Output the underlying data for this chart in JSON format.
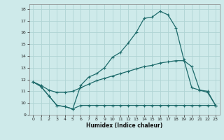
{
  "xlabel": "Humidex (Indice chaleur)",
  "xlim": [
    -0.5,
    23.5
  ],
  "ylim": [
    9,
    18.4
  ],
  "xticks": [
    0,
    1,
    2,
    3,
    4,
    5,
    6,
    7,
    8,
    9,
    10,
    11,
    12,
    13,
    14,
    15,
    16,
    17,
    18,
    19,
    20,
    21,
    22,
    23
  ],
  "yticks": [
    9,
    10,
    11,
    12,
    13,
    14,
    15,
    16,
    17,
    18
  ],
  "bg_color": "#ceeaea",
  "grid_color": "#afd4d4",
  "line_color": "#1e6b6b",
  "line1_x": [
    0,
    1,
    2,
    3,
    4,
    5,
    6,
    7,
    8,
    9,
    10,
    11,
    12,
    13,
    14,
    15,
    16,
    17,
    18,
    19,
    20,
    21,
    22,
    23
  ],
  "line1_y": [
    11.8,
    11.4,
    10.6,
    9.8,
    9.7,
    9.5,
    9.8,
    9.8,
    9.8,
    9.8,
    9.8,
    9.8,
    9.8,
    9.8,
    9.8,
    9.8,
    9.8,
    9.8,
    9.8,
    9.8,
    9.8,
    9.8,
    9.8,
    9.8
  ],
  "line2_x": [
    0,
    1,
    2,
    3,
    4,
    5,
    6,
    7,
    8,
    9,
    10,
    11,
    12,
    13,
    14,
    15,
    16,
    17,
    18,
    19,
    20,
    21,
    22,
    23
  ],
  "line2_y": [
    11.8,
    11.4,
    10.6,
    9.8,
    9.7,
    9.5,
    11.5,
    12.2,
    12.5,
    13.0,
    13.9,
    14.3,
    15.1,
    16.0,
    17.2,
    17.3,
    17.8,
    17.5,
    16.4,
    13.7,
    11.3,
    11.1,
    10.9,
    9.8
  ],
  "line3_x": [
    0,
    1,
    2,
    3,
    4,
    5,
    6,
    7,
    8,
    9,
    10,
    11,
    12,
    13,
    14,
    15,
    16,
    17,
    18,
    19,
    20,
    21,
    22,
    23
  ],
  "line3_y": [
    11.8,
    11.5,
    11.1,
    10.9,
    10.9,
    11.0,
    11.3,
    11.6,
    11.9,
    12.1,
    12.3,
    12.5,
    12.7,
    12.9,
    13.1,
    13.2,
    13.4,
    13.5,
    13.6,
    13.6,
    13.1,
    11.1,
    11.0,
    9.8
  ]
}
